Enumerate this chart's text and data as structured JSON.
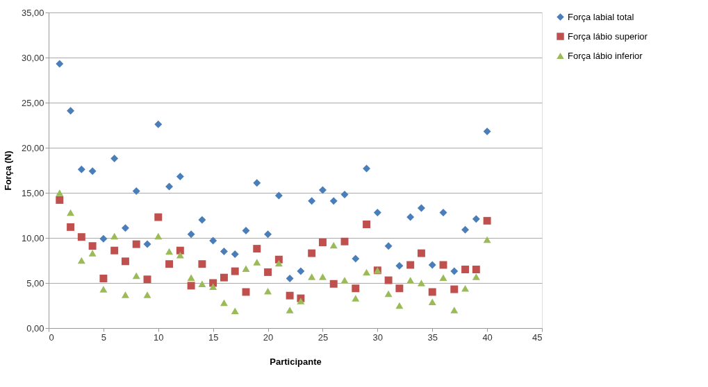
{
  "chart_data": {
    "type": "scatter",
    "xlabel": "Participante",
    "ylabel": "Força (N)",
    "x": [
      1,
      2,
      3,
      4,
      5,
      6,
      7,
      8,
      9,
      10,
      11,
      12,
      13,
      14,
      15,
      16,
      17,
      18,
      19,
      20,
      21,
      22,
      23,
      24,
      25,
      26,
      27,
      28,
      29,
      30,
      31,
      32,
      33,
      34,
      35,
      36,
      37,
      38,
      39,
      40
    ],
    "series": [
      {
        "name": "Força labial total",
        "color": "#4a7ebb",
        "marker": "diamond",
        "values": [
          29.3,
          24.1,
          17.6,
          17.4,
          9.9,
          18.8,
          11.1,
          15.2,
          9.3,
          22.6,
          15.7,
          16.8,
          10.4,
          12.0,
          9.7,
          8.5,
          8.2,
          10.8,
          16.1,
          10.4,
          14.7,
          5.5,
          6.3,
          14.1,
          15.3,
          14.1,
          14.8,
          7.7,
          17.7,
          12.8,
          9.1,
          6.9,
          12.3,
          13.3,
          7.0,
          12.8,
          6.3,
          10.9,
          12.1,
          21.8
        ]
      },
      {
        "name": "Força lábio superior",
        "color": "#c0504d",
        "marker": "square",
        "values": [
          14.2,
          11.2,
          10.1,
          9.1,
          5.5,
          8.6,
          7.4,
          9.3,
          5.4,
          12.3,
          7.1,
          8.6,
          4.7,
          7.1,
          5.0,
          5.6,
          6.3,
          4.0,
          8.8,
          6.2,
          7.6,
          3.6,
          3.3,
          8.3,
          9.5,
          4.9,
          9.6,
          4.4,
          11.5,
          6.4,
          5.3,
          4.4,
          7.0,
          8.3,
          4.0,
          7.0,
          4.3,
          6.5,
          6.5,
          11.9
        ]
      },
      {
        "name": "Força lábio inferior",
        "color": "#9bbb59",
        "marker": "triangle",
        "values": [
          15.0,
          12.8,
          7.5,
          8.3,
          4.3,
          10.2,
          3.7,
          5.8,
          3.7,
          10.2,
          8.5,
          8.1,
          5.6,
          4.9,
          4.6,
          2.8,
          1.9,
          6.6,
          7.3,
          4.1,
          7.2,
          2.0,
          3.0,
          5.7,
          5.7,
          9.2,
          5.3,
          3.3,
          6.2,
          6.4,
          3.8,
          2.5,
          5.3,
          5.0,
          2.9,
          5.6,
          2.0,
          4.4,
          5.7,
          9.8
        ]
      }
    ],
    "xlim": [
      0,
      45
    ],
    "xticks": [
      0,
      5,
      10,
      15,
      20,
      25,
      30,
      35,
      40,
      45
    ],
    "ylim": [
      0,
      35
    ],
    "yticks": [
      {
        "value": 0,
        "label": "0,00"
      },
      {
        "value": 5,
        "label": "5,00"
      },
      {
        "value": 10,
        "label": "10,00"
      },
      {
        "value": 15,
        "label": "15,00"
      },
      {
        "value": 20,
        "label": "20,00"
      },
      {
        "value": 25,
        "label": "25,00"
      },
      {
        "value": 30,
        "label": "30,00"
      },
      {
        "value": 35,
        "label": "35,00"
      }
    ],
    "grid": "y",
    "legend": "right"
  }
}
